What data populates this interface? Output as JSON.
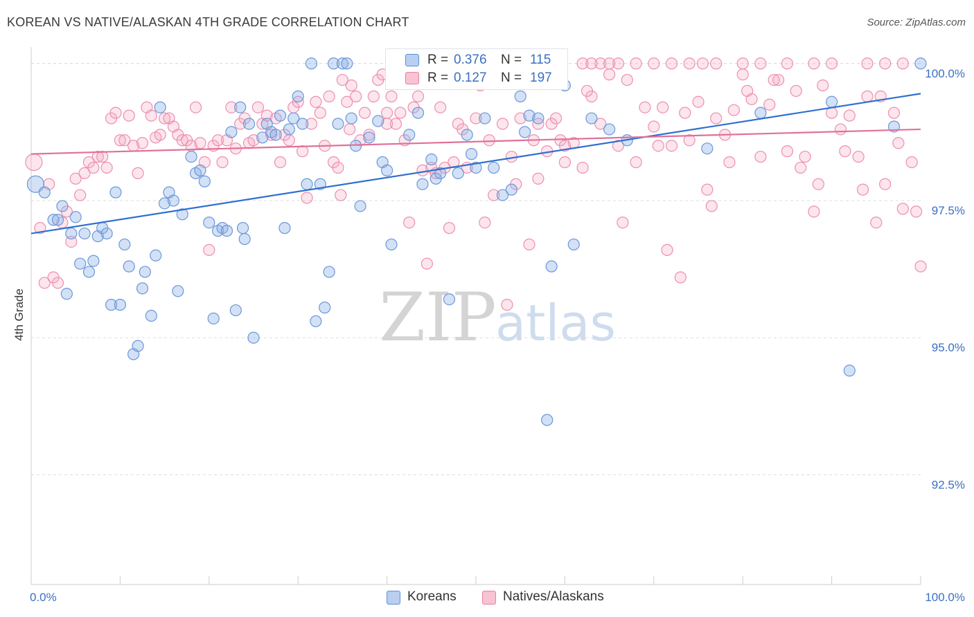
{
  "header": {
    "title": "KOREAN VS NATIVE/ALASKAN 4TH GRADE CORRELATION CHART",
    "source": "Source: ZipAtlas.com"
  },
  "watermark": {
    "zip": "ZIP",
    "atlas": "atlas"
  },
  "legend": {
    "r_label": "R =",
    "n_label": "N =",
    "entries": [
      {
        "name": "Koreans",
        "r": "0.376",
        "n": "115",
        "color": "#5b8fd6",
        "fill": "#b8cff0"
      },
      {
        "name": "Natives/Alaskans",
        "r": "0.127",
        "n": "197",
        "color": "#ea7fa1",
        "fill": "#f8c3d3"
      }
    ]
  },
  "chart_data": {
    "type": "scatter",
    "title": "KOREAN VS NATIVE/ALASKAN 4TH GRADE CORRELATION CHART",
    "xlabel": "",
    "ylabel": "4th Grade",
    "xlim": [
      0,
      100
    ],
    "ylim": [
      90.5,
      100.3
    ],
    "x_tick_labels": [
      "0.0%",
      "100.0%"
    ],
    "y_ticks": [
      92.5,
      95.0,
      97.5,
      100.0
    ],
    "y_tick_labels": [
      "92.5%",
      "95.0%",
      "97.5%",
      "100.0%"
    ],
    "grid": true,
    "legend_position": "top-center",
    "series": [
      {
        "name": "Koreans",
        "color": "#5b8fd6",
        "trend": {
          "x": [
            0,
            100
          ],
          "y": [
            96.9,
            99.45
          ]
        },
        "points": [
          [
            0.5,
            97.8
          ],
          [
            1.5,
            97.65
          ],
          [
            2.5,
            97.15
          ],
          [
            3,
            97.15
          ],
          [
            3.5,
            97.4
          ],
          [
            4,
            95.8
          ],
          [
            4.5,
            96.9
          ],
          [
            5,
            97.2
          ],
          [
            5.5,
            96.35
          ],
          [
            6,
            96.9
          ],
          [
            6.5,
            96.2
          ],
          [
            7,
            96.4
          ],
          [
            7.5,
            96.85
          ],
          [
            8,
            97
          ],
          [
            8.5,
            96.9
          ],
          [
            9,
            95.6
          ],
          [
            9.5,
            97.65
          ],
          [
            10,
            95.6
          ],
          [
            10.5,
            96.7
          ],
          [
            11,
            96.3
          ],
          [
            11.5,
            94.7
          ],
          [
            12,
            94.85
          ],
          [
            12.5,
            95.9
          ],
          [
            12.8,
            96.2
          ],
          [
            13.5,
            95.4
          ],
          [
            14,
            96.5
          ],
          [
            14.5,
            99.2
          ],
          [
            15,
            97.45
          ],
          [
            15.5,
            97.65
          ],
          [
            16,
            97.5
          ],
          [
            16.5,
            95.85
          ],
          [
            17,
            97.25
          ],
          [
            18,
            98.3
          ],
          [
            18.5,
            98
          ],
          [
            19,
            98.05
          ],
          [
            19.5,
            97.85
          ],
          [
            20,
            97.1
          ],
          [
            20.5,
            95.35
          ],
          [
            21,
            96.95
          ],
          [
            21.5,
            97
          ],
          [
            22,
            96.95
          ],
          [
            22.5,
            98.75
          ],
          [
            23,
            95.5
          ],
          [
            23.5,
            99.2
          ],
          [
            23.8,
            97
          ],
          [
            24,
            96.8
          ],
          [
            24.5,
            98.9
          ],
          [
            25,
            95
          ],
          [
            26,
            98.65
          ],
          [
            26.5,
            98.9
          ],
          [
            27,
            98.75
          ],
          [
            27.5,
            98.7
          ],
          [
            28,
            99.05
          ],
          [
            28.5,
            97
          ],
          [
            29,
            98.8
          ],
          [
            29.5,
            99
          ],
          [
            30,
            99.4
          ],
          [
            30.5,
            98.9
          ],
          [
            31,
            97.8
          ],
          [
            31.5,
            100
          ],
          [
            32,
            95.3
          ],
          [
            32.5,
            97.8
          ],
          [
            33,
            95.55
          ],
          [
            33.5,
            96.2
          ],
          [
            34,
            100
          ],
          [
            34.5,
            98.9
          ],
          [
            35,
            100
          ],
          [
            35.5,
            100
          ],
          [
            36,
            99
          ],
          [
            36.5,
            98.5
          ],
          [
            37,
            97.4
          ],
          [
            38,
            98.65
          ],
          [
            39,
            98.95
          ],
          [
            39.5,
            98.2
          ],
          [
            40,
            98.05
          ],
          [
            40.5,
            96.7
          ],
          [
            42,
            100
          ],
          [
            42.5,
            98.7
          ],
          [
            43.5,
            99.1
          ],
          [
            44,
            97.8
          ],
          [
            45,
            98.25
          ],
          [
            45.5,
            97.9
          ],
          [
            46,
            98
          ],
          [
            47,
            95.7
          ],
          [
            47.5,
            100
          ],
          [
            48,
            98
          ],
          [
            49,
            98.7
          ],
          [
            49.5,
            98.35
          ],
          [
            50,
            98.1
          ],
          [
            51,
            99
          ],
          [
            52,
            98.1
          ],
          [
            53,
            97.6
          ],
          [
            54,
            97.7
          ],
          [
            55,
            99.4
          ],
          [
            55.5,
            98.75
          ],
          [
            56,
            99.05
          ],
          [
            57,
            99
          ],
          [
            58,
            93.5
          ],
          [
            58.5,
            96.3
          ],
          [
            60,
            99.6
          ],
          [
            61,
            96.7
          ],
          [
            63,
            99
          ],
          [
            65,
            98.8
          ],
          [
            67,
            98.6
          ],
          [
            76,
            98.45
          ],
          [
            82,
            99.1
          ],
          [
            90,
            99.3
          ],
          [
            92,
            94.4
          ],
          [
            97,
            98.85
          ],
          [
            100,
            100
          ]
        ]
      },
      {
        "name": "Natives/Alaskans",
        "color": "#ea7fa1",
        "trend": {
          "x": [
            0,
            100
          ],
          "y": [
            98.35,
            98.8
          ]
        },
        "points": [
          [
            0.3,
            98.2
          ],
          [
            1,
            97
          ],
          [
            1.5,
            96
          ],
          [
            2,
            97.8
          ],
          [
            2.5,
            96.1
          ],
          [
            3,
            96
          ],
          [
            3.5,
            97.1
          ],
          [
            4,
            97.3
          ],
          [
            4.5,
            96.75
          ],
          [
            5,
            97.9
          ],
          [
            5.5,
            97.6
          ],
          [
            6,
            98
          ],
          [
            6.5,
            98.2
          ],
          [
            7,
            98.1
          ],
          [
            7.5,
            98.3
          ],
          [
            8,
            98.3
          ],
          [
            8.5,
            98.1
          ],
          [
            9,
            99
          ],
          [
            9.5,
            99.1
          ],
          [
            10,
            98.6
          ],
          [
            10.5,
            98.6
          ],
          [
            11,
            99.05
          ],
          [
            11.5,
            98.5
          ],
          [
            12,
            98
          ],
          [
            12.5,
            98.55
          ],
          [
            13,
            99.2
          ],
          [
            13.5,
            99.05
          ],
          [
            14,
            98.65
          ],
          [
            14.5,
            98.7
          ],
          [
            15,
            99
          ],
          [
            15.5,
            99
          ],
          [
            16,
            98.85
          ],
          [
            16.5,
            98.7
          ],
          [
            17,
            98.6
          ],
          [
            17.5,
            98.6
          ],
          [
            18,
            98.5
          ],
          [
            18.5,
            99.2
          ],
          [
            19,
            98.55
          ],
          [
            19.5,
            98.2
          ],
          [
            20,
            96.6
          ],
          [
            20.5,
            98.5
          ],
          [
            21,
            98.6
          ],
          [
            21.5,
            98.2
          ],
          [
            22,
            98.6
          ],
          [
            22.5,
            99.2
          ],
          [
            23,
            98.45
          ],
          [
            23.5,
            98.9
          ],
          [
            24,
            99
          ],
          [
            24.5,
            98.55
          ],
          [
            25,
            98.6
          ],
          [
            25.5,
            99.2
          ],
          [
            26,
            98.9
          ],
          [
            26.5,
            99.05
          ],
          [
            27,
            98.7
          ],
          [
            27.5,
            99
          ],
          [
            28,
            98.2
          ],
          [
            28.5,
            98.7
          ],
          [
            29,
            98.6
          ],
          [
            29.5,
            99.2
          ],
          [
            30,
            99.3
          ],
          [
            30.5,
            98.4
          ],
          [
            31,
            97.55
          ],
          [
            31.5,
            98.9
          ],
          [
            32,
            99.3
          ],
          [
            32.5,
            99.1
          ],
          [
            33,
            98.5
          ],
          [
            33.5,
            99.4
          ],
          [
            34,
            98.2
          ],
          [
            34.5,
            98.1
          ],
          [
            35,
            99.7
          ],
          [
            35.5,
            99.3
          ],
          [
            36,
            99.6
          ],
          [
            36.5,
            99.4
          ],
          [
            37,
            98.6
          ],
          [
            37.5,
            99.1
          ],
          [
            38,
            98.7
          ],
          [
            38.5,
            99.4
          ],
          [
            39,
            99.7
          ],
          [
            39.5,
            99.8
          ],
          [
            40,
            99.1
          ],
          [
            40.5,
            99.4
          ],
          [
            41,
            98.9
          ],
          [
            41.5,
            99.1
          ],
          [
            42,
            98.6
          ],
          [
            42.5,
            97.1
          ],
          [
            43,
            99.2
          ],
          [
            43.5,
            99.4
          ],
          [
            44,
            98.05
          ],
          [
            44.5,
            96.35
          ],
          [
            45,
            98.1
          ],
          [
            46,
            99.2
          ],
          [
            46.5,
            98.1
          ],
          [
            47,
            97
          ],
          [
            47.5,
            98.2
          ],
          [
            48,
            98.9
          ],
          [
            48.5,
            98.8
          ],
          [
            49,
            98.1
          ],
          [
            50,
            99
          ],
          [
            50.5,
            99.6
          ],
          [
            51,
            97.1
          ],
          [
            51.5,
            98.6
          ],
          [
            52,
            97.6
          ],
          [
            53,
            98.9
          ],
          [
            53.5,
            95.6
          ],
          [
            54,
            98.3
          ],
          [
            55,
            99.9
          ],
          [
            56,
            96.7
          ],
          [
            56.5,
            98.6
          ],
          [
            57,
            98.9
          ],
          [
            58,
            98.4
          ],
          [
            58.5,
            98.9
          ],
          [
            59,
            99
          ],
          [
            59.5,
            98.6
          ],
          [
            60,
            98.2
          ],
          [
            61,
            98.55
          ],
          [
            62,
            98.1
          ],
          [
            63,
            99.4
          ],
          [
            64,
            98.9
          ],
          [
            65,
            99.8
          ],
          [
            66,
            98.5
          ],
          [
            67,
            99.7
          ],
          [
            68,
            98.2
          ],
          [
            69,
            99.2
          ],
          [
            70,
            98.85
          ],
          [
            71,
            99.2
          ],
          [
            72,
            98.5
          ],
          [
            73,
            96.1
          ],
          [
            74,
            98.6
          ],
          [
            75,
            99.3
          ],
          [
            76,
            97.7
          ],
          [
            77,
            99
          ],
          [
            78,
            98.7
          ],
          [
            79,
            99.15
          ],
          [
            80,
            99.8
          ],
          [
            81,
            99.35
          ],
          [
            82,
            98.3
          ],
          [
            83,
            99.25
          ],
          [
            84,
            99.7
          ],
          [
            85,
            98.4
          ],
          [
            86,
            99.5
          ],
          [
            87,
            98.3
          ],
          [
            88,
            97.3
          ],
          [
            89,
            99.6
          ],
          [
            90,
            99.1
          ],
          [
            91,
            98.8
          ],
          [
            92,
            99.05
          ],
          [
            93,
            98.3
          ],
          [
            94,
            99.4
          ],
          [
            95,
            97.1
          ],
          [
            96,
            97.8
          ],
          [
            97,
            99.1
          ],
          [
            98,
            97.35
          ],
          [
            99,
            98.2
          ],
          [
            100,
            96.3
          ],
          [
            40,
            98.9
          ],
          [
            43,
            100
          ],
          [
            62,
            100
          ],
          [
            64,
            100
          ],
          [
            66,
            100
          ],
          [
            68,
            100
          ],
          [
            72,
            100
          ],
          [
            74,
            100
          ],
          [
            77,
            100
          ],
          [
            80,
            100
          ],
          [
            82,
            100
          ],
          [
            85,
            100
          ],
          [
            88,
            100
          ],
          [
            90,
            100
          ],
          [
            94,
            100
          ],
          [
            96,
            100
          ],
          [
            98,
            100
          ],
          [
            70,
            100
          ],
          [
            53,
            100
          ],
          [
            59,
            100
          ],
          [
            62.5,
            99.5
          ],
          [
            45,
            100
          ],
          [
            48,
            100
          ],
          [
            50,
            100
          ],
          [
            55,
            99
          ],
          [
            57,
            97.9
          ],
          [
            60,
            98.5
          ],
          [
            63,
            100
          ],
          [
            65,
            100
          ],
          [
            70.5,
            98.5
          ],
          [
            73.5,
            99.1
          ],
          [
            75.5,
            100
          ],
          [
            78.5,
            98.2
          ],
          [
            80.5,
            99.5
          ],
          [
            83.5,
            99.7
          ],
          [
            86.5,
            98.1
          ],
          [
            88.5,
            97.8
          ],
          [
            91.5,
            98.4
          ],
          [
            93.5,
            97.7
          ],
          [
            95.5,
            99.4
          ],
          [
            97.5,
            98.55
          ],
          [
            99.5,
            97.3
          ],
          [
            34.8,
            97.6
          ],
          [
            35.8,
            98.8
          ],
          [
            45.5,
            98
          ],
          [
            54.5,
            97.8
          ],
          [
            66.5,
            97.1
          ],
          [
            71.5,
            96.6
          ],
          [
            76.5,
            97.4
          ]
        ]
      }
    ]
  }
}
